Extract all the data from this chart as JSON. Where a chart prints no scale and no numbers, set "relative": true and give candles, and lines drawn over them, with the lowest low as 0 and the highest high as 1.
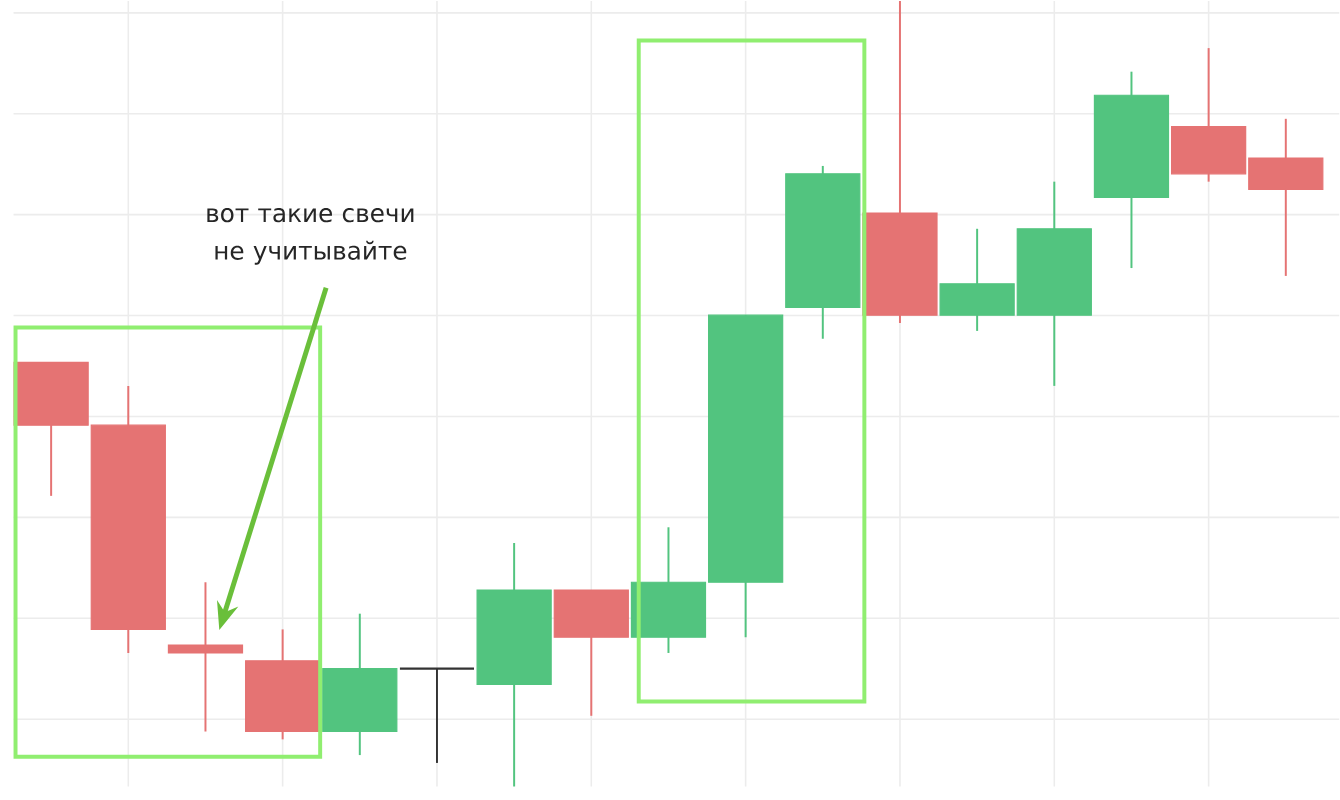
{
  "chart_data": {
    "type": "candlestick",
    "relative": true,
    "grid": true,
    "categories": [
      null,
      null,
      null,
      null,
      null,
      null,
      null,
      null,
      null,
      null,
      null,
      null,
      null,
      null,
      null,
      null,
      null
    ],
    "ohlc": [
      [
        0.54,
        0.54,
        0.37,
        0.46
      ],
      [
        0.46,
        0.51,
        0.17,
        0.2
      ],
      [
        0.18,
        0.26,
        0.07,
        0.17
      ],
      [
        0.16,
        0.2,
        0.06,
        0.07
      ],
      [
        0.07,
        0.22,
        0.04,
        0.15
      ],
      [
        0.15,
        0.15,
        0.03,
        0.15
      ],
      [
        0.13,
        0.31,
        0,
        0.25
      ],
      [
        0.25,
        0.25,
        0.09,
        0.19
      ],
      [
        0.19,
        0.33,
        0.17,
        0.26
      ],
      [
        0.26,
        0.6,
        0.19,
        0.6
      ],
      [
        0.61,
        0.79,
        0.57,
        0.78
      ],
      [
        0.73,
        1,
        0.59,
        0.6
      ],
      [
        0.6,
        0.71,
        0.58,
        0.64
      ],
      [
        0.6,
        0.77,
        0.51,
        0.71
      ],
      [
        0.75,
        0.91,
        0.66,
        0.88
      ],
      [
        0.84,
        0.94,
        0.77,
        0.78
      ],
      [
        0.8,
        0.85,
        0.65,
        0.76
      ]
    ],
    "colors": [
      "#e57373",
      "#e57373",
      "#e57373",
      "#e57373",
      "#52c47f",
      "#333333",
      "#52c47f",
      "#e57373",
      "#52c47f",
      "#52c47f",
      "#52c47f",
      "#e57373",
      "#52c47f",
      "#52c47f",
      "#52c47f",
      "#e57373",
      "#e57373"
    ],
    "annotations": [
      "вот такие свечи\nне учитывайте"
    ]
  }
}
